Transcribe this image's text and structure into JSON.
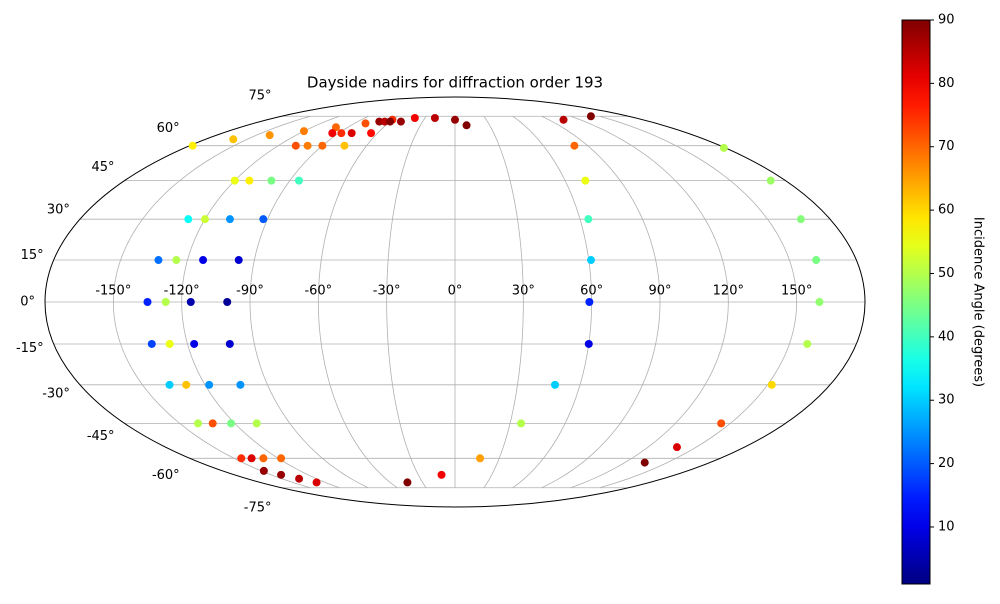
{
  "chart_data": {
    "type": "scatter",
    "projection": "mollweide",
    "title": "Dayside nadirs for diffraction order 193",
    "xlim": [
      -180,
      180
    ],
    "ylim": [
      -90,
      90
    ],
    "xticks": [
      {
        "value": -150,
        "label": "-150°"
      },
      {
        "value": -120,
        "label": "-120°"
      },
      {
        "value": -90,
        "label": "-90°"
      },
      {
        "value": -60,
        "label": "-60°"
      },
      {
        "value": -30,
        "label": "-30°"
      },
      {
        "value": 0,
        "label": "0°"
      },
      {
        "value": 30,
        "label": "30°"
      },
      {
        "value": 60,
        "label": "60°"
      },
      {
        "value": 90,
        "label": "90°"
      },
      {
        "value": 120,
        "label": "120°"
      },
      {
        "value": 150,
        "label": "150°"
      }
    ],
    "yticks": [
      {
        "value": -75,
        "label": "-75°"
      },
      {
        "value": -60,
        "label": "-60°"
      },
      {
        "value": -45,
        "label": "-45°"
      },
      {
        "value": -30,
        "label": "-30°"
      },
      {
        "value": -15,
        "label": "-15°"
      },
      {
        "value": 0,
        "label": "0°"
      },
      {
        "value": 15,
        "label": "15°"
      },
      {
        "value": 30,
        "label": "30°"
      },
      {
        "value": 45,
        "label": "45°"
      },
      {
        "value": 60,
        "label": "60°"
      },
      {
        "value": 75,
        "label": "75°"
      }
    ],
    "grid": true,
    "colormap": "jet",
    "colorbar": {
      "label": "Incidence Angle (degrees)",
      "clim": [
        1,
        90
      ],
      "ticks": [
        10,
        20,
        30,
        40,
        50,
        60,
        70,
        80,
        90
      ]
    },
    "series": [
      {
        "lon": [
          -178,
          -160,
          -140,
          -120,
          -100,
          -80,
          -60,
          -40,
          -20,
          0,
          10
        ],
        "lat": [
          60,
          63,
          65,
          67,
          69,
          71,
          73,
          74,
          74,
          73,
          70
        ],
        "incidence": [
          58,
          62,
          66,
          68,
          70,
          72,
          75,
          80,
          85,
          88,
          90
        ]
      },
      {
        "lon": [
          -70,
          -95,
          -108,
          -120,
          -128,
          -133,
          -135,
          -136,
          -137,
          -140,
          -145,
          -148
        ],
        "lat": [
          72,
          66,
          60,
          45,
          30,
          15,
          0,
          -15,
          -30,
          -45,
          -60,
          -66
        ],
        "incidence": [
          88,
          80,
          72,
          55,
          35,
          22,
          15,
          18,
          30,
          50,
          75,
          88
        ]
      },
      {
        "lon": [
          -65,
          -88,
          -100,
          -112,
          -120,
          -125,
          -127,
          -128,
          -129,
          -132,
          -138,
          -142
        ],
        "lat": [
          72,
          66,
          60,
          45,
          30,
          15,
          0,
          -15,
          -30,
          -45,
          -60,
          -68
        ],
        "incidence": [
          85,
          75,
          68,
          58,
          52,
          50,
          50,
          55,
          62,
          72,
          82,
          88
        ]
      },
      {
        "lon": [
          -60,
          -80,
          -90,
          -100,
          -108,
          -113,
          -116,
          -117,
          -118,
          -122,
          -130,
          -135
        ],
        "lat": [
          72,
          66,
          60,
          45,
          30,
          15,
          0,
          -15,
          -30,
          -45,
          -60,
          -70
        ],
        "incidence": [
          90,
          82,
          70,
          45,
          25,
          10,
          5,
          10,
          25,
          45,
          70,
          85
        ]
      },
      {
        "lon": [
          -50,
          -65,
          -75,
          -85,
          -92,
          -97,
          -100,
          -101,
          -103,
          -108,
          -118,
          -128
        ],
        "lat": [
          72,
          66,
          60,
          45,
          30,
          15,
          0,
          -15,
          -30,
          -45,
          -60,
          -72
        ],
        "incidence": [
          88,
          78,
          62,
          40,
          20,
          8,
          3,
          8,
          25,
          50,
          70,
          82
        ]
      },
      {
        "lon": [
          141,
          104,
          81,
          71,
          64,
          61,
          59,
          60,
          48,
          36,
          17,
          -11,
          -44
        ],
        "lat": [
          75,
          73,
          60,
          45,
          30,
          15,
          0,
          -15,
          -30,
          -45,
          -60,
          -68,
          -72
        ],
        "incidence": [
          90,
          85,
          70,
          55,
          40,
          30,
          15,
          10,
          30,
          50,
          65,
          80,
          90
        ]
      },
      {
        "lon": [
          179,
          172,
          166,
          162,
          160,
          158,
          152,
          145,
          138,
          134
        ],
        "lat": [
          59,
          45,
          30,
          15,
          0,
          -15,
          -30,
          -45,
          -55,
          -62
        ],
        "incidence": [
          50,
          48,
          46,
          45,
          47,
          50,
          60,
          72,
          82,
          90
        ]
      }
    ]
  }
}
